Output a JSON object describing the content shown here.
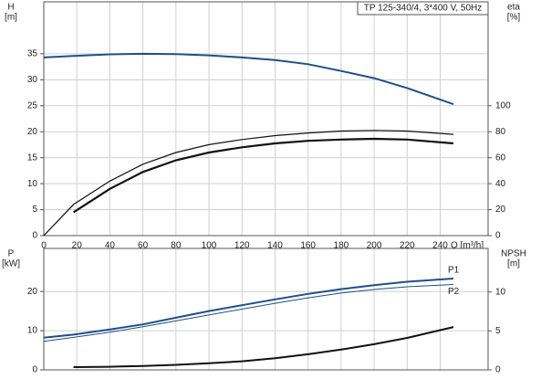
{
  "chart_data": [
    {
      "type": "line",
      "title": "TP 125-340/4, 3*400 V, 50Hz",
      "ylabel": [
        "H",
        "[m]"
      ],
      "y2label": [
        "eta",
        "[%]"
      ],
      "xlabel": "Q [m³/h]",
      "xlim": [
        0,
        269
      ],
      "xticks": [
        0,
        20,
        40,
        60,
        80,
        100,
        120,
        140,
        160,
        180,
        200,
        220,
        240
      ],
      "ylim": [
        0,
        45
      ],
      "yticks": [
        0,
        5,
        10,
        15,
        20,
        25,
        30,
        35
      ],
      "y2lim": [
        0,
        180
      ],
      "y2ticks": [
        0,
        20,
        40,
        60,
        80,
        100
      ],
      "grid": true,
      "x": [
        0,
        18,
        40,
        60,
        80,
        100,
        120,
        140,
        160,
        180,
        200,
        220,
        248
      ],
      "series": [
        {
          "color": "#1f4e8c",
          "width": 2,
          "values": [
            34.3,
            34.6,
            34.9,
            35.0,
            34.95,
            34.7,
            34.3,
            33.8,
            33.0,
            31.7,
            30.3,
            28.4,
            25.3
          ]
        },
        {
          "color": "#111111",
          "width": 1.2,
          "axis": "y2",
          "values": [
            0,
            24,
            42,
            55,
            64,
            70,
            74,
            77,
            79,
            80.5,
            81,
            80.5,
            78
          ]
        },
        {
          "color": "#111111",
          "width": 2.2,
          "axis": "y2",
          "values": [
            null,
            18,
            36,
            49,
            58,
            64,
            68,
            71,
            73,
            74,
            74.5,
            74,
            71
          ]
        }
      ]
    },
    {
      "type": "line",
      "ylabel": [
        "P",
        "[kW]"
      ],
      "y2label": [
        "NPSH",
        "[m]"
      ],
      "xlim": [
        0,
        269
      ],
      "xticks": [
        0,
        20,
        40,
        60,
        80,
        100,
        120,
        140,
        160,
        180,
        200,
        220,
        240
      ],
      "ylim": [
        0,
        31
      ],
      "yticks": [
        0,
        10,
        20
      ],
      "y2lim": [
        0,
        15.6
      ],
      "y2ticks": [
        0,
        5,
        10
      ],
      "grid": true,
      "x": [
        0,
        18,
        40,
        60,
        80,
        100,
        120,
        140,
        160,
        180,
        200,
        220,
        248
      ],
      "series": [
        {
          "name": "P1",
          "color": "#1f4e8c",
          "width": 2,
          "values": [
            8.2,
            9,
            10.3,
            11.6,
            13.3,
            15,
            16.5,
            18,
            19.4,
            20.6,
            21.6,
            22.5,
            23.3
          ]
        },
        {
          "name": "P2",
          "color": "#1f4e8c",
          "width": 1,
          "values": [
            7.3,
            8.3,
            9.6,
            11,
            12.5,
            14,
            15.5,
            17,
            18.4,
            19.6,
            20.5,
            21.2,
            21.8
          ]
        },
        {
          "color": "#111111",
          "width": 2,
          "axis": "y2",
          "values": [
            null,
            0.35,
            0.4,
            0.5,
            0.65,
            0.85,
            1.1,
            1.5,
            2.0,
            2.6,
            3.3,
            4.1,
            5.5
          ]
        }
      ]
    }
  ]
}
